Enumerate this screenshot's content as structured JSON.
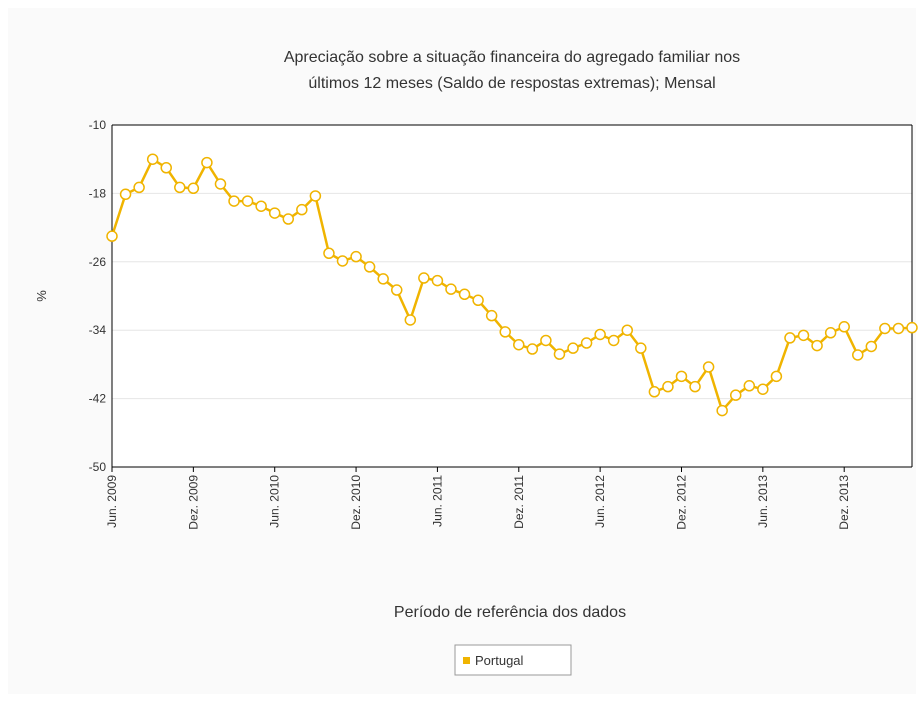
{
  "chart_data": {
    "type": "line",
    "title": [
      "Apreciação sobre a situação financeira do agregado familiar nos",
      "últimos 12 meses (Saldo de respostas extremas); Mensal"
    ],
    "xlabel": "Período de referência dos dados",
    "ylabel": "%",
    "categories": [
      "Jun. 2009",
      null,
      null,
      null,
      null,
      null,
      "Dez. 2009",
      null,
      null,
      null,
      null,
      null,
      "Jun. 2010",
      null,
      null,
      null,
      null,
      null,
      "Dez. 2010",
      null,
      null,
      null,
      null,
      null,
      "Jun. 2011",
      null,
      null,
      null,
      null,
      null,
      "Dez. 2011",
      null,
      null,
      null,
      null,
      null,
      "Jun. 2012",
      null,
      null,
      null,
      null,
      null,
      "Dez. 2012",
      null,
      null,
      null,
      null,
      null,
      "Jun. 2013",
      null,
      null,
      null,
      null,
      null,
      "Dez. 2013",
      null,
      null,
      null,
      null,
      null
    ],
    "series": [
      {
        "name": "Portugal",
        "color": "#f0b400",
        "values": [
          -23,
          -18.1,
          -17.3,
          -14.0,
          -15.0,
          -17.3,
          -17.4,
          -14.4,
          -16.9,
          -18.9,
          -18.9,
          -19.5,
          -20.3,
          -21.0,
          -19.9,
          -18.3,
          -25.0,
          -25.9,
          -25.4,
          -26.6,
          -28.0,
          -29.3,
          -32.8,
          -27.9,
          -28.2,
          -29.2,
          -29.8,
          -30.5,
          -32.3,
          -34.2,
          -35.7,
          -36.2,
          -35.2,
          -36.8,
          -36.1,
          -35.5,
          -34.5,
          -35.2,
          -34.0,
          -36.1,
          -41.2,
          -40.6,
          -39.4,
          -40.6,
          -38.3,
          -43.4,
          -41.6,
          -40.5,
          -40.9,
          -39.4,
          -34.9,
          -34.6,
          -35.8,
          -34.3,
          -33.6,
          -36.9,
          -35.9,
          -33.8,
          -33.8,
          -33.7
        ]
      }
    ],
    "ylim": [
      -50,
      -10
    ],
    "yticks": [
      -10,
      -18,
      -26,
      -34,
      -42,
      -50
    ],
    "grid": true,
    "legend": "bottom"
  }
}
